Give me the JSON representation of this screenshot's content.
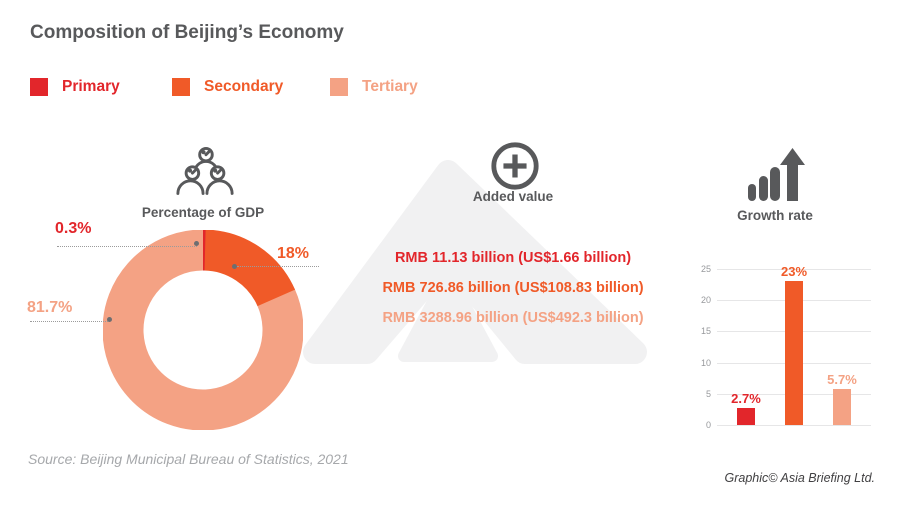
{
  "title": "Composition of Beijing’s Economy",
  "legend": [
    {
      "label": "Primary",
      "color": "#e2262b"
    },
    {
      "label": "Secondary",
      "color": "#f05a28"
    },
    {
      "label": "Tertiary",
      "color": "#f4a284"
    }
  ],
  "sections": {
    "gdp": {
      "label": "Percentage of GDP",
      "icon": "population-icon"
    },
    "added_value": {
      "label": "Added value",
      "icon": "plus-circle-icon",
      "values": [
        {
          "text": "RMB 11.13 billion (US$1.66 billion)",
          "color": "#e2262b"
        },
        {
          "text": "RMB 726.86 billion (US$108.83 billion)",
          "color": "#f05a28"
        },
        {
          "text": "RMB 3288.96 billion (US$492.3 billion)",
          "color": "#f4a284"
        }
      ]
    },
    "growth": {
      "label": "Growth rate",
      "icon": "bar-growth-icon"
    }
  },
  "chart_data": [
    {
      "type": "pie",
      "subtype": "donut",
      "title": "Percentage of GDP",
      "categories": [
        "Primary",
        "Secondary",
        "Tertiary"
      ],
      "values": [
        0.3,
        18,
        81.7
      ],
      "labels": [
        "0.3%",
        "18%",
        "81.7%"
      ],
      "colors": [
        "#e2262b",
        "#f05a28",
        "#f4a284"
      ],
      "start_angle_deg": -90,
      "direction": "clockwise",
      "legend_position": "top-left"
    },
    {
      "type": "bar",
      "title": "Growth rate",
      "categories": [
        "Primary",
        "Secondary",
        "Tertiary"
      ],
      "values": [
        2.7,
        23,
        5.7
      ],
      "labels": [
        "2.7%",
        "23%",
        "5.7%"
      ],
      "colors": [
        "#e2262b",
        "#f05a28",
        "#f4a284"
      ],
      "ylabel": "",
      "xlabel": "",
      "ylim": [
        0,
        25
      ],
      "yticks": [
        0,
        5,
        10,
        15,
        20,
        25
      ],
      "grid": true,
      "legend_position": "none"
    }
  ],
  "source": "Source: Beijing Municipal Bureau of Statistics, 2021",
  "credit": "Graphic© Asia Briefing Ltd."
}
